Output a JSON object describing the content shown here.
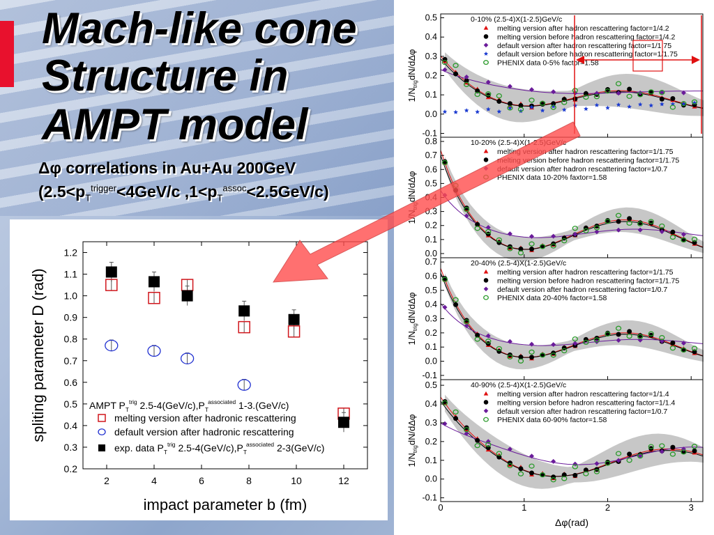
{
  "slide": {
    "title_lines": [
      "Mach-like cone",
      "Structure in",
      "AMPT model"
    ],
    "subtitle1": "Δφ correlations in Au+Au 200GeV",
    "subtitle2": {
      "prefix": "(2.5<p",
      "sub1": "T",
      "sup1": "trigger",
      "mid": "<4GeV/c ,1<p",
      "sub2": "T",
      "sup2": "assoc",
      "suffix": "<2.5GeV/c)"
    }
  },
  "left_chart": {
    "type": "scatter",
    "xlabel": "impact parameter b (fm)",
    "ylabel": "spliting parameter D (rad)",
    "xticks": [
      "2",
      "4",
      "6",
      "8",
      "10",
      "12"
    ],
    "yticks": [
      "0.2",
      "0.3",
      "0.4",
      "0.5",
      "0.6",
      "0.7",
      "0.8",
      "0.9",
      "1.0",
      "1.1",
      "1.2"
    ],
    "xlim": [
      1,
      13
    ],
    "ylim": [
      0.2,
      1.25
    ],
    "legend": {
      "header": {
        "base": "AMPT P",
        "sub": "T",
        "sup": "trig",
        "rest1": " 2.5-4(GeV/c),P",
        "sub2": "T",
        "sup2": "associated",
        "rest2": " 1-3.(GeV/c)"
      },
      "items": [
        {
          "label": "melting version after hadronic rescattering"
        },
        {
          "label": "default version after hadronic rescattering"
        },
        {
          "base": "exp. data P",
          "sub": "T",
          "sup": "trig",
          "rest1": " 2.5-4(GeV/c),P",
          "sub2": "T",
          "sup2": "associated",
          "rest2": " 2-3(GeV/c)"
        }
      ]
    },
    "series": [
      {
        "marker": "square-open",
        "color": "#d0151b",
        "points": [
          {
            "x": 2.2,
            "y": 1.05
          },
          {
            "x": 4.0,
            "y": 0.99
          },
          {
            "x": 5.4,
            "y": 1.05
          },
          {
            "x": 7.8,
            "y": 0.855
          },
          {
            "x": 9.9,
            "y": 0.835
          },
          {
            "x": 12.0,
            "y": 0.455
          }
        ]
      },
      {
        "marker": "circle-open",
        "color": "#1f2fd0",
        "points": [
          {
            "x": 2.2,
            "y": 0.77
          },
          {
            "x": 4.0,
            "y": 0.745
          },
          {
            "x": 5.4,
            "y": 0.71
          },
          {
            "x": 7.8,
            "y": 0.588
          }
        ]
      },
      {
        "marker": "square-filled",
        "color": "#000000",
        "points": [
          {
            "x": 2.2,
            "y": 1.11
          },
          {
            "x": 4.0,
            "y": 1.065
          },
          {
            "x": 5.4,
            "y": 1.0
          },
          {
            "x": 7.8,
            "y": 0.93
          },
          {
            "x": 9.9,
            "y": 0.89
          },
          {
            "x": 12.0,
            "y": 0.415
          }
        ]
      }
    ]
  },
  "right_chart": {
    "type": "scatter",
    "ylabel_base": "1/N",
    "ylabel_sub": "trig",
    "ylabel_rest": "dN/dΔφ",
    "xlabel": "Δφ(rad)",
    "xticks": [
      "0",
      "1",
      "2",
      "3"
    ],
    "xlim": [
      0,
      3.14
    ],
    "panels": [
      {
        "header": "0-10% (2.5-4)X(1-2.5)GeV/c",
        "yticks": [
          "-0.1",
          "0.0",
          "0.1",
          "0.2",
          "0.3",
          "0.4",
          "0.5"
        ],
        "ylim": [
          -0.12,
          0.52
        ],
        "legend": [
          "melting version after hadron rescattering  factor=1/4.2",
          "melting version before hadron rescattering  factor=1/4.2",
          "default version after hadron rescattering  factor=1/1.75",
          "default version before hadron rescattering  factor=1/1.75",
          "PHENIX data 0-5%  factor=1.58"
        ]
      },
      {
        "header": "10-20% (2.5-4)X(1-2.5)GeV/c",
        "yticks": [
          "0.0",
          "0.1",
          "0.2",
          "0.3",
          "0.4",
          "0.5",
          "0.6",
          "0.7",
          "0.8"
        ],
        "ylim": [
          -0.03,
          0.83
        ],
        "legend": [
          "melting version after hadron rescattering  factor=1/1.75",
          "melting version before hadron rescattering  factor=1/1.75",
          "default version after hadron rescattering  factor=1/0.7",
          "PHENIX data 10-20%  faxtor=1.58"
        ]
      },
      {
        "header": "20-40% (2.5-4)X(1-2.5)GeV/c",
        "yticks": [
          "-0.1",
          "0.0",
          "0.1",
          "0.2",
          "0.3",
          "0.4",
          "0.5",
          "0.6",
          "0.7"
        ],
        "ylim": [
          -0.13,
          0.73
        ],
        "legend": [
          "melting version after hadron rescattering  factor=1/1.75",
          "melting version before hadron rescattering  factor=1/1.75",
          "default version after hadron rescattering  factor=1/0.7",
          "PHENIX data 20-40%  factor=1.58"
        ]
      },
      {
        "header": "40-90% (2.5-4)X(1-2.5)GeV/c",
        "yticks": [
          "-0.1",
          "0.0",
          "0.1",
          "0.2",
          "0.3",
          "0.4",
          "0.5"
        ],
        "ylim": [
          -0.12,
          0.53
        ],
        "legend": [
          "melting version after hadron rescattering  factor=1/1.4",
          "melting version before hadron rescattering  factor=1/1.4",
          "default version after hadron rescattering  factor=1/0.7",
          "PHENIX data 60-90%  factor=1.58"
        ]
      }
    ],
    "marker_styles": [
      {
        "marker": "triangle",
        "color": "#e01010"
      },
      {
        "marker": "circle-filled",
        "color": "#000000"
      },
      {
        "marker": "diamond",
        "color": "#6a1b9a"
      },
      {
        "marker": "star",
        "color": "#1a3ad0"
      },
      {
        "marker": "circle-open",
        "color": "#2a9a2a"
      }
    ],
    "band_color": "#bdbdbd"
  },
  "annotations": {
    "vline_color": "#e01010",
    "arrow_color": "#ff4d4d"
  }
}
